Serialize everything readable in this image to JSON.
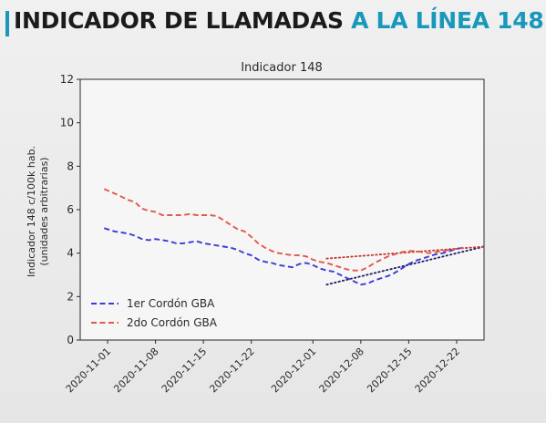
{
  "header": {
    "title_part1": "INDICADOR DE LLAMADAS ",
    "title_part2": "A LA LÍNEA 148",
    "accent_color": "#1a98b9"
  },
  "chart_data": {
    "type": "line",
    "title": "Indicador 148",
    "ylabel_line1": "Indicador 148 c/100k hab.",
    "ylabel_line2": "(unidades arbitrarias)",
    "xlabel": "",
    "ylim": [
      0,
      12
    ],
    "yticks": [
      0,
      2,
      4,
      6,
      8,
      10,
      12
    ],
    "xlim_days": [
      -4,
      55
    ],
    "xticks": [
      {
        "day": 0,
        "label": "2020-11-01"
      },
      {
        "day": 7,
        "label": "2020-11-08"
      },
      {
        "day": 14,
        "label": "2020-11-15"
      },
      {
        "day": 21,
        "label": "2020-11-22"
      },
      {
        "day": 30,
        "label": "2020-12-01"
      },
      {
        "day": 37,
        "label": "2020-12-08"
      },
      {
        "day": 44,
        "label": "2020-12-15"
      },
      {
        "day": 51,
        "label": "2020-12-22"
      }
    ],
    "grid": false,
    "legend_position": "lower-left",
    "series": [
      {
        "name": "1er Cordón GBA",
        "color": "#3b3bd6",
        "style": "dashed",
        "x": [
          -0.5,
          1,
          2,
          3,
          4,
          5,
          6,
          7,
          8,
          9,
          10,
          11,
          12,
          13,
          14,
          15,
          16,
          17,
          18,
          19,
          20,
          21,
          22,
          23,
          24,
          25,
          26,
          27,
          28,
          29,
          30,
          31,
          32,
          33,
          34,
          35,
          36,
          37,
          38,
          39,
          40,
          41,
          42,
          43,
          44,
          45,
          46,
          47,
          48,
          49,
          50,
          51,
          52
        ],
        "y": [
          5.15,
          5.0,
          4.95,
          4.9,
          4.8,
          4.65,
          4.6,
          4.65,
          4.6,
          4.55,
          4.45,
          4.45,
          4.5,
          4.55,
          4.45,
          4.4,
          4.35,
          4.3,
          4.25,
          4.15,
          4.0,
          3.9,
          3.7,
          3.6,
          3.55,
          3.45,
          3.4,
          3.35,
          3.5,
          3.55,
          3.45,
          3.3,
          3.2,
          3.15,
          3.0,
          2.85,
          2.7,
          2.55,
          2.6,
          2.75,
          2.85,
          2.95,
          3.1,
          3.3,
          3.5,
          3.65,
          3.75,
          3.85,
          3.95,
          4.0,
          4.1,
          4.2,
          4.25
        ]
      },
      {
        "name": "2do Cordón GBA",
        "color": "#e3584c",
        "style": "dashed",
        "x": [
          -0.5,
          1,
          2,
          3,
          4,
          5,
          6,
          7,
          8,
          9,
          10,
          11,
          12,
          13,
          14,
          15,
          16,
          17,
          18,
          19,
          20,
          21,
          22,
          23,
          24,
          25,
          26,
          27,
          28,
          29,
          30,
          31,
          32,
          33,
          34,
          35,
          36,
          37,
          38,
          39,
          40,
          41,
          42,
          43,
          44,
          45,
          46,
          47,
          48,
          49,
          50,
          51,
          52
        ],
        "y": [
          6.95,
          6.75,
          6.6,
          6.45,
          6.35,
          6.05,
          5.95,
          5.9,
          5.75,
          5.75,
          5.75,
          5.75,
          5.8,
          5.75,
          5.75,
          5.75,
          5.7,
          5.5,
          5.3,
          5.1,
          5.0,
          4.75,
          4.45,
          4.25,
          4.1,
          4.0,
          3.95,
          3.9,
          3.9,
          3.85,
          3.7,
          3.6,
          3.55,
          3.45,
          3.35,
          3.25,
          3.2,
          3.2,
          3.35,
          3.55,
          3.7,
          3.85,
          3.95,
          4.05,
          4.1,
          4.1,
          4.05,
          4.0,
          4.05,
          4.1,
          4.15,
          4.2,
          4.25
        ]
      }
    ],
    "trendlines": [
      {
        "color": "#1f1f66",
        "x": [
          32,
          55
        ],
        "y": [
          2.55,
          4.3
        ]
      },
      {
        "color": "#c0392b",
        "x": [
          32,
          55
        ],
        "y": [
          3.75,
          4.3
        ]
      }
    ]
  }
}
